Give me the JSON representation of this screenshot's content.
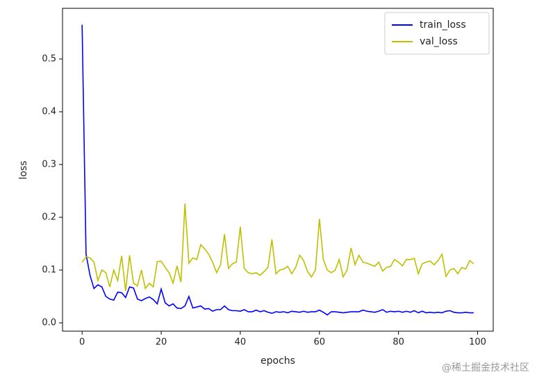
{
  "chart_data": {
    "type": "line",
    "xlabel": "epochs",
    "ylabel": "loss",
    "x": [
      0,
      1,
      2,
      3,
      4,
      5,
      6,
      7,
      8,
      9,
      10,
      11,
      12,
      13,
      14,
      15,
      16,
      17,
      18,
      19,
      20,
      21,
      22,
      23,
      24,
      25,
      26,
      27,
      28,
      29,
      30,
      31,
      32,
      33,
      34,
      35,
      36,
      37,
      38,
      39,
      40,
      41,
      42,
      43,
      44,
      45,
      46,
      47,
      48,
      49,
      50,
      51,
      52,
      53,
      54,
      55,
      56,
      57,
      58,
      59,
      60,
      61,
      62,
      63,
      64,
      65,
      66,
      67,
      68,
      69,
      70,
      71,
      72,
      73,
      74,
      75,
      76,
      77,
      78,
      79,
      80,
      81,
      82,
      83,
      84,
      85,
      86,
      87,
      88,
      89,
      90,
      91,
      92,
      93,
      94,
      95,
      96,
      97,
      98,
      99
    ],
    "series": [
      {
        "name": "train_loss",
        "color": "#0000ff",
        "values": [
          0.565,
          0.13,
          0.09,
          0.065,
          0.072,
          0.068,
          0.05,
          0.045,
          0.043,
          0.058,
          0.057,
          0.048,
          0.068,
          0.066,
          0.045,
          0.042,
          0.046,
          0.049,
          0.044,
          0.036,
          0.064,
          0.038,
          0.032,
          0.036,
          0.028,
          0.027,
          0.032,
          0.05,
          0.028,
          0.03,
          0.032,
          0.026,
          0.027,
          0.022,
          0.025,
          0.025,
          0.032,
          0.025,
          0.023,
          0.023,
          0.022,
          0.025,
          0.021,
          0.021,
          0.024,
          0.021,
          0.023,
          0.02,
          0.018,
          0.021,
          0.02,
          0.021,
          0.019,
          0.022,
          0.021,
          0.02,
          0.022,
          0.02,
          0.021,
          0.021,
          0.024,
          0.02,
          0.015,
          0.021,
          0.021,
          0.02,
          0.019,
          0.02,
          0.021,
          0.021,
          0.021,
          0.024,
          0.022,
          0.021,
          0.02,
          0.022,
          0.025,
          0.02,
          0.022,
          0.021,
          0.022,
          0.02,
          0.022,
          0.02,
          0.023,
          0.019,
          0.022,
          0.019,
          0.02,
          0.019,
          0.02,
          0.019,
          0.022,
          0.023,
          0.02,
          0.019,
          0.019,
          0.02,
          0.019,
          0.019
        ]
      },
      {
        "name": "val_loss",
        "color": "#bfbf00",
        "values": [
          0.115,
          0.125,
          0.123,
          0.115,
          0.08,
          0.1,
          0.095,
          0.068,
          0.1,
          0.08,
          0.127,
          0.06,
          0.128,
          0.075,
          0.07,
          0.1,
          0.065,
          0.075,
          0.068,
          0.116,
          0.117,
          0.105,
          0.095,
          0.075,
          0.108,
          0.077,
          0.226,
          0.113,
          0.123,
          0.12,
          0.148,
          0.14,
          0.13,
          0.115,
          0.095,
          0.11,
          0.168,
          0.103,
          0.112,
          0.115,
          0.182,
          0.103,
          0.095,
          0.093,
          0.095,
          0.09,
          0.097,
          0.105,
          0.158,
          0.093,
          0.1,
          0.102,
          0.107,
          0.093,
          0.105,
          0.128,
          0.118,
          0.097,
          0.087,
          0.1,
          0.197,
          0.12,
          0.1,
          0.095,
          0.1,
          0.12,
          0.087,
          0.1,
          0.142,
          0.11,
          0.128,
          0.115,
          0.113,
          0.11,
          0.107,
          0.115,
          0.098,
          0.105,
          0.107,
          0.12,
          0.115,
          0.108,
          0.12,
          0.12,
          0.122,
          0.093,
          0.112,
          0.115,
          0.117,
          0.11,
          0.118,
          0.13,
          0.088,
          0.1,
          0.103,
          0.093,
          0.105,
          0.102,
          0.118,
          0.112
        ]
      }
    ],
    "xlim": [
      -4.95,
      103.95
    ],
    "ylim": [
      -0.0158,
      0.596
    ],
    "xticks": [
      0,
      20,
      40,
      60,
      80,
      100
    ],
    "yticks": [
      {
        "value": 0,
        "label": "0.0"
      },
      0.1,
      0.2,
      0.3,
      0.4,
      0.5
    ],
    "legend": "upper right",
    "grid": false
  },
  "watermark": "@稀土掘金技术社区"
}
